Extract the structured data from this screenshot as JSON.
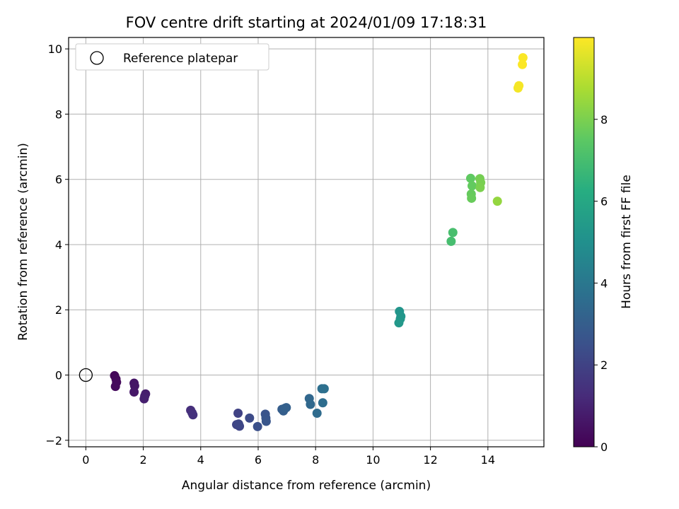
{
  "chart_data": {
    "type": "scatter",
    "title": "FOV centre drift starting at 2024/01/09 17:18:31",
    "xlabel": "Angular distance from reference (arcmin)",
    "ylabel": "Rotation from reference (arcmin)",
    "xlim": [
      -0.6,
      15.95
    ],
    "ylim": [
      -2.2,
      10.35
    ],
    "xticks": [
      0,
      2,
      4,
      6,
      8,
      10,
      12,
      14
    ],
    "yticks": [
      -2,
      0,
      2,
      4,
      6,
      8,
      10
    ],
    "grid": true,
    "legend": {
      "location": "top-left",
      "entries": [
        "Reference platepar"
      ]
    },
    "reference_point": {
      "x": 0,
      "y": 0,
      "label": "Reference platepar"
    },
    "colorbar": {
      "label": "Hours from first FF file",
      "range": [
        0,
        10
      ],
      "ticks": [
        0,
        2,
        4,
        6,
        8
      ],
      "colormap": "viridis"
    },
    "points": [
      {
        "x": 1.0,
        "y": -0.02,
        "hours": 0.15
      },
      {
        "x": 1.05,
        "y": -0.12,
        "hours": 0.2
      },
      {
        "x": 1.07,
        "y": -0.22,
        "hours": 0.25
      },
      {
        "x": 1.03,
        "y": -0.35,
        "hours": 0.3
      },
      {
        "x": 1.68,
        "y": -0.25,
        "hours": 0.55
      },
      {
        "x": 1.7,
        "y": -0.33,
        "hours": 0.6
      },
      {
        "x": 1.68,
        "y": -0.52,
        "hours": 0.65
      },
      {
        "x": 2.08,
        "y": -0.58,
        "hours": 0.8
      },
      {
        "x": 2.05,
        "y": -0.65,
        "hours": 0.85
      },
      {
        "x": 2.03,
        "y": -0.73,
        "hours": 0.9
      },
      {
        "x": 3.65,
        "y": -1.08,
        "hours": 1.35
      },
      {
        "x": 3.7,
        "y": -1.16,
        "hours": 1.4
      },
      {
        "x": 3.73,
        "y": -1.22,
        "hours": 1.45
      },
      {
        "x": 5.3,
        "y": -1.17,
        "hours": 2.0
      },
      {
        "x": 5.25,
        "y": -1.52,
        "hours": 2.05
      },
      {
        "x": 5.35,
        "y": -1.57,
        "hours": 2.1
      },
      {
        "x": 5.32,
        "y": -1.5,
        "hours": 2.15
      },
      {
        "x": 5.7,
        "y": -1.32,
        "hours": 2.3
      },
      {
        "x": 5.98,
        "y": -1.58,
        "hours": 2.45
      },
      {
        "x": 6.25,
        "y": -1.2,
        "hours": 2.6
      },
      {
        "x": 6.27,
        "y": -1.32,
        "hours": 2.65
      },
      {
        "x": 6.28,
        "y": -1.42,
        "hours": 2.7
      },
      {
        "x": 6.83,
        "y": -1.05,
        "hours": 2.95
      },
      {
        "x": 6.88,
        "y": -1.1,
        "hours": 3.0
      },
      {
        "x": 6.93,
        "y": -1.02,
        "hours": 3.05
      },
      {
        "x": 6.98,
        "y": -1.0,
        "hours": 3.1
      },
      {
        "x": 7.78,
        "y": -0.72,
        "hours": 3.35
      },
      {
        "x": 7.82,
        "y": -0.9,
        "hours": 3.4
      },
      {
        "x": 8.05,
        "y": -1.17,
        "hours": 3.5
      },
      {
        "x": 8.25,
        "y": -0.85,
        "hours": 3.6
      },
      {
        "x": 8.22,
        "y": -0.42,
        "hours": 3.65
      },
      {
        "x": 8.3,
        "y": -0.42,
        "hours": 3.7
      },
      {
        "x": 10.92,
        "y": 1.95,
        "hours": 5.2
      },
      {
        "x": 10.97,
        "y": 1.8,
        "hours": 5.25
      },
      {
        "x": 10.95,
        "y": 1.72,
        "hours": 5.3
      },
      {
        "x": 10.9,
        "y": 1.6,
        "hours": 5.35
      },
      {
        "x": 12.72,
        "y": 4.1,
        "hours": 7.0
      },
      {
        "x": 12.78,
        "y": 4.37,
        "hours": 7.05
      },
      {
        "x": 13.4,
        "y": 6.03,
        "hours": 7.55
      },
      {
        "x": 13.45,
        "y": 5.8,
        "hours": 7.6
      },
      {
        "x": 13.42,
        "y": 5.55,
        "hours": 7.65
      },
      {
        "x": 13.43,
        "y": 5.42,
        "hours": 7.7
      },
      {
        "x": 13.72,
        "y": 6.02,
        "hours": 7.9
      },
      {
        "x": 13.75,
        "y": 5.9,
        "hours": 7.95
      },
      {
        "x": 13.73,
        "y": 5.75,
        "hours": 8.0
      },
      {
        "x": 14.33,
        "y": 5.33,
        "hours": 8.4
      },
      {
        "x": 15.05,
        "y": 8.8,
        "hours": 9.85
      },
      {
        "x": 15.08,
        "y": 8.87,
        "hours": 9.88
      },
      {
        "x": 15.22,
        "y": 9.73,
        "hours": 9.95
      },
      {
        "x": 15.2,
        "y": 9.52,
        "hours": 9.97
      }
    ]
  }
}
